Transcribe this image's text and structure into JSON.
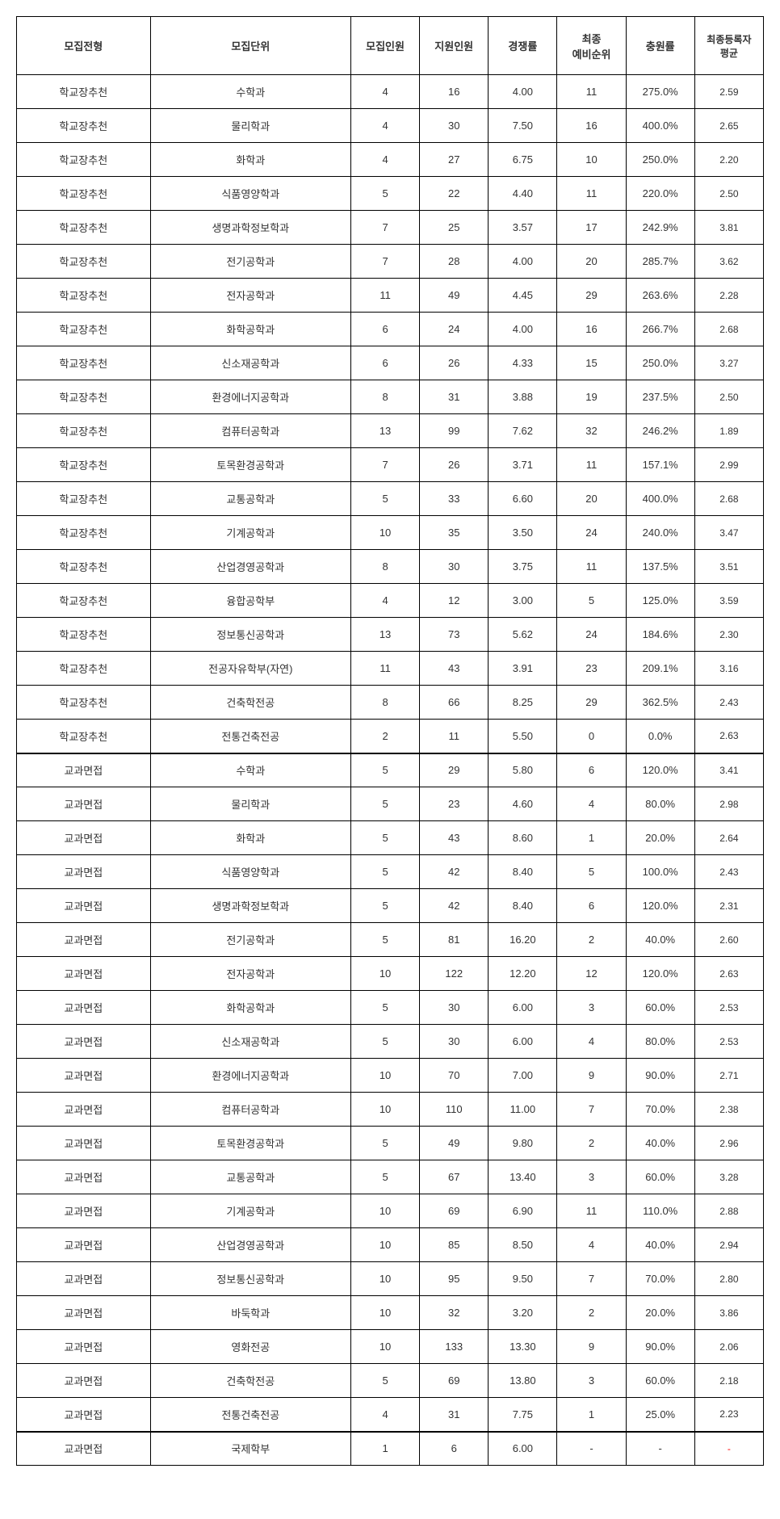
{
  "headers": [
    "모집전형",
    "모집단위",
    "모집인원",
    "지원인원",
    "경쟁률",
    "최종\n예비순위",
    "충원률",
    "최종등록자\n평균"
  ],
  "rows": [
    {
      "type": "학교장추천",
      "unit": "수학과",
      "recruit": "4",
      "apply": "16",
      "ratio": "4.00",
      "rank": "11",
      "fill": "275.0%",
      "avg": "2.59",
      "sectionEnd": false
    },
    {
      "type": "학교장추천",
      "unit": "물리학과",
      "recruit": "4",
      "apply": "30",
      "ratio": "7.50",
      "rank": "16",
      "fill": "400.0%",
      "avg": "2.65",
      "sectionEnd": false
    },
    {
      "type": "학교장추천",
      "unit": "화학과",
      "recruit": "4",
      "apply": "27",
      "ratio": "6.75",
      "rank": "10",
      "fill": "250.0%",
      "avg": "2.20",
      "sectionEnd": false
    },
    {
      "type": "학교장추천",
      "unit": "식품영양학과",
      "recruit": "5",
      "apply": "22",
      "ratio": "4.40",
      "rank": "11",
      "fill": "220.0%",
      "avg": "2.50",
      "sectionEnd": false
    },
    {
      "type": "학교장추천",
      "unit": "생명과학정보학과",
      "recruit": "7",
      "apply": "25",
      "ratio": "3.57",
      "rank": "17",
      "fill": "242.9%",
      "avg": "3.81",
      "sectionEnd": false
    },
    {
      "type": "학교장추천",
      "unit": "전기공학과",
      "recruit": "7",
      "apply": "28",
      "ratio": "4.00",
      "rank": "20",
      "fill": "285.7%",
      "avg": "3.62",
      "sectionEnd": false
    },
    {
      "type": "학교장추천",
      "unit": "전자공학과",
      "recruit": "11",
      "apply": "49",
      "ratio": "4.45",
      "rank": "29",
      "fill": "263.6%",
      "avg": "2.28",
      "sectionEnd": false
    },
    {
      "type": "학교장추천",
      "unit": "화학공학과",
      "recruit": "6",
      "apply": "24",
      "ratio": "4.00",
      "rank": "16",
      "fill": "266.7%",
      "avg": "2.68",
      "sectionEnd": false
    },
    {
      "type": "학교장추천",
      "unit": "신소재공학과",
      "recruit": "6",
      "apply": "26",
      "ratio": "4.33",
      "rank": "15",
      "fill": "250.0%",
      "avg": "3.27",
      "sectionEnd": false
    },
    {
      "type": "학교장추천",
      "unit": "환경에너지공학과",
      "recruit": "8",
      "apply": "31",
      "ratio": "3.88",
      "rank": "19",
      "fill": "237.5%",
      "avg": "2.50",
      "sectionEnd": false
    },
    {
      "type": "학교장추천",
      "unit": "컴퓨터공학과",
      "recruit": "13",
      "apply": "99",
      "ratio": "7.62",
      "rank": "32",
      "fill": "246.2%",
      "avg": "1.89",
      "sectionEnd": false
    },
    {
      "type": "학교장추천",
      "unit": "토목환경공학과",
      "recruit": "7",
      "apply": "26",
      "ratio": "3.71",
      "rank": "11",
      "fill": "157.1%",
      "avg": "2.99",
      "sectionEnd": false
    },
    {
      "type": "학교장추천",
      "unit": "교통공학과",
      "recruit": "5",
      "apply": "33",
      "ratio": "6.60",
      "rank": "20",
      "fill": "400.0%",
      "avg": "2.68",
      "sectionEnd": false
    },
    {
      "type": "학교장추천",
      "unit": "기계공학과",
      "recruit": "10",
      "apply": "35",
      "ratio": "3.50",
      "rank": "24",
      "fill": "240.0%",
      "avg": "3.47",
      "sectionEnd": false
    },
    {
      "type": "학교장추천",
      "unit": "산업경영공학과",
      "recruit": "8",
      "apply": "30",
      "ratio": "3.75",
      "rank": "11",
      "fill": "137.5%",
      "avg": "3.51",
      "sectionEnd": false
    },
    {
      "type": "학교장추천",
      "unit": "융합공학부",
      "recruit": "4",
      "apply": "12",
      "ratio": "3.00",
      "rank": "5",
      "fill": "125.0%",
      "avg": "3.59",
      "sectionEnd": false
    },
    {
      "type": "학교장추천",
      "unit": "정보통신공학과",
      "recruit": "13",
      "apply": "73",
      "ratio": "5.62",
      "rank": "24",
      "fill": "184.6%",
      "avg": "2.30",
      "sectionEnd": false
    },
    {
      "type": "학교장추천",
      "unit": "전공자유학부(자연)",
      "recruit": "11",
      "apply": "43",
      "ratio": "3.91",
      "rank": "23",
      "fill": "209.1%",
      "avg": "3.16",
      "sectionEnd": false
    },
    {
      "type": "학교장추천",
      "unit": "건축학전공",
      "recruit": "8",
      "apply": "66",
      "ratio": "8.25",
      "rank": "29",
      "fill": "362.5%",
      "avg": "2.43",
      "sectionEnd": false
    },
    {
      "type": "학교장추천",
      "unit": "전통건축전공",
      "recruit": "2",
      "apply": "11",
      "ratio": "5.50",
      "rank": "0",
      "fill": "0.0%",
      "avg": "2.63",
      "sectionEnd": true
    },
    {
      "type": "교과면접",
      "unit": "수학과",
      "recruit": "5",
      "apply": "29",
      "ratio": "5.80",
      "rank": "6",
      "fill": "120.0%",
      "avg": "3.41",
      "sectionEnd": false
    },
    {
      "type": "교과면접",
      "unit": "물리학과",
      "recruit": "5",
      "apply": "23",
      "ratio": "4.60",
      "rank": "4",
      "fill": "80.0%",
      "avg": "2.98",
      "sectionEnd": false
    },
    {
      "type": "교과면접",
      "unit": "화학과",
      "recruit": "5",
      "apply": "43",
      "ratio": "8.60",
      "rank": "1",
      "fill": "20.0%",
      "avg": "2.64",
      "sectionEnd": false
    },
    {
      "type": "교과면접",
      "unit": "식품영양학과",
      "recruit": "5",
      "apply": "42",
      "ratio": "8.40",
      "rank": "5",
      "fill": "100.0%",
      "avg": "2.43",
      "sectionEnd": false
    },
    {
      "type": "교과면접",
      "unit": "생명과학정보학과",
      "recruit": "5",
      "apply": "42",
      "ratio": "8.40",
      "rank": "6",
      "fill": "120.0%",
      "avg": "2.31",
      "sectionEnd": false
    },
    {
      "type": "교과면접",
      "unit": "전기공학과",
      "recruit": "5",
      "apply": "81",
      "ratio": "16.20",
      "rank": "2",
      "fill": "40.0%",
      "avg": "2.60",
      "sectionEnd": false
    },
    {
      "type": "교과면접",
      "unit": "전자공학과",
      "recruit": "10",
      "apply": "122",
      "ratio": "12.20",
      "rank": "12",
      "fill": "120.0%",
      "avg": "2.63",
      "sectionEnd": false
    },
    {
      "type": "교과면접",
      "unit": "화학공학과",
      "recruit": "5",
      "apply": "30",
      "ratio": "6.00",
      "rank": "3",
      "fill": "60.0%",
      "avg": "2.53",
      "sectionEnd": false
    },
    {
      "type": "교과면접",
      "unit": "신소재공학과",
      "recruit": "5",
      "apply": "30",
      "ratio": "6.00",
      "rank": "4",
      "fill": "80.0%",
      "avg": "2.53",
      "sectionEnd": false
    },
    {
      "type": "교과면접",
      "unit": "환경에너지공학과",
      "recruit": "10",
      "apply": "70",
      "ratio": "7.00",
      "rank": "9",
      "fill": "90.0%",
      "avg": "2.71",
      "sectionEnd": false
    },
    {
      "type": "교과면접",
      "unit": "컴퓨터공학과",
      "recruit": "10",
      "apply": "110",
      "ratio": "11.00",
      "rank": "7",
      "fill": "70.0%",
      "avg": "2.38",
      "sectionEnd": false
    },
    {
      "type": "교과면접",
      "unit": "토목환경공학과",
      "recruit": "5",
      "apply": "49",
      "ratio": "9.80",
      "rank": "2",
      "fill": "40.0%",
      "avg": "2.96",
      "sectionEnd": false
    },
    {
      "type": "교과면접",
      "unit": "교통공학과",
      "recruit": "5",
      "apply": "67",
      "ratio": "13.40",
      "rank": "3",
      "fill": "60.0%",
      "avg": "3.28",
      "sectionEnd": false
    },
    {
      "type": "교과면접",
      "unit": "기계공학과",
      "recruit": "10",
      "apply": "69",
      "ratio": "6.90",
      "rank": "11",
      "fill": "110.0%",
      "avg": "2.88",
      "sectionEnd": false
    },
    {
      "type": "교과면접",
      "unit": "산업경영공학과",
      "recruit": "10",
      "apply": "85",
      "ratio": "8.50",
      "rank": "4",
      "fill": "40.0%",
      "avg": "2.94",
      "sectionEnd": false
    },
    {
      "type": "교과면접",
      "unit": "정보통신공학과",
      "recruit": "10",
      "apply": "95",
      "ratio": "9.50",
      "rank": "7",
      "fill": "70.0%",
      "avg": "2.80",
      "sectionEnd": false
    },
    {
      "type": "교과면접",
      "unit": "바둑학과",
      "recruit": "10",
      "apply": "32",
      "ratio": "3.20",
      "rank": "2",
      "fill": "20.0%",
      "avg": "3.86",
      "sectionEnd": false
    },
    {
      "type": "교과면접",
      "unit": "영화전공",
      "recruit": "10",
      "apply": "133",
      "ratio": "13.30",
      "rank": "9",
      "fill": "90.0%",
      "avg": "2.06",
      "sectionEnd": false
    },
    {
      "type": "교과면접",
      "unit": "건축학전공",
      "recruit": "5",
      "apply": "69",
      "ratio": "13.80",
      "rank": "3",
      "fill": "60.0%",
      "avg": "2.18",
      "sectionEnd": false
    },
    {
      "type": "교과면접",
      "unit": "전통건축전공",
      "recruit": "4",
      "apply": "31",
      "ratio": "7.75",
      "rank": "1",
      "fill": "25.0%",
      "avg": "2.23",
      "sectionEnd": true
    },
    {
      "type": "교과면접",
      "unit": "국제학부",
      "recruit": "1",
      "apply": "6",
      "ratio": "6.00",
      "rank": "-",
      "fill": "-",
      "avg": "-",
      "avgRed": true,
      "sectionEnd": false
    }
  ]
}
